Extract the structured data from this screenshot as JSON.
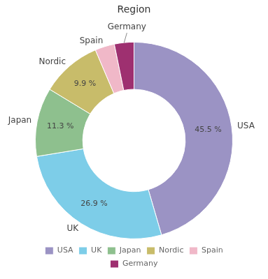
{
  "chart_data": {
    "type": "doughnut",
    "title": "Region",
    "categories": [
      "USA",
      "UK",
      "Japan",
      "Nordic",
      "Spain",
      "Germany"
    ],
    "values": [
      45.5,
      26.9,
      11.3,
      9.9,
      3.2,
      3.2
    ],
    "value_labels": [
      "45.5 %",
      "26.9 %",
      "11.3 %",
      "9.9 %",
      null,
      null
    ],
    "colors": [
      "#9b93c4",
      "#7dcde8",
      "#8ec08e",
      "#c8bc6a",
      "#f0b8c8",
      "#9e3070"
    ],
    "data_labels": true,
    "legend": "bottom"
  }
}
